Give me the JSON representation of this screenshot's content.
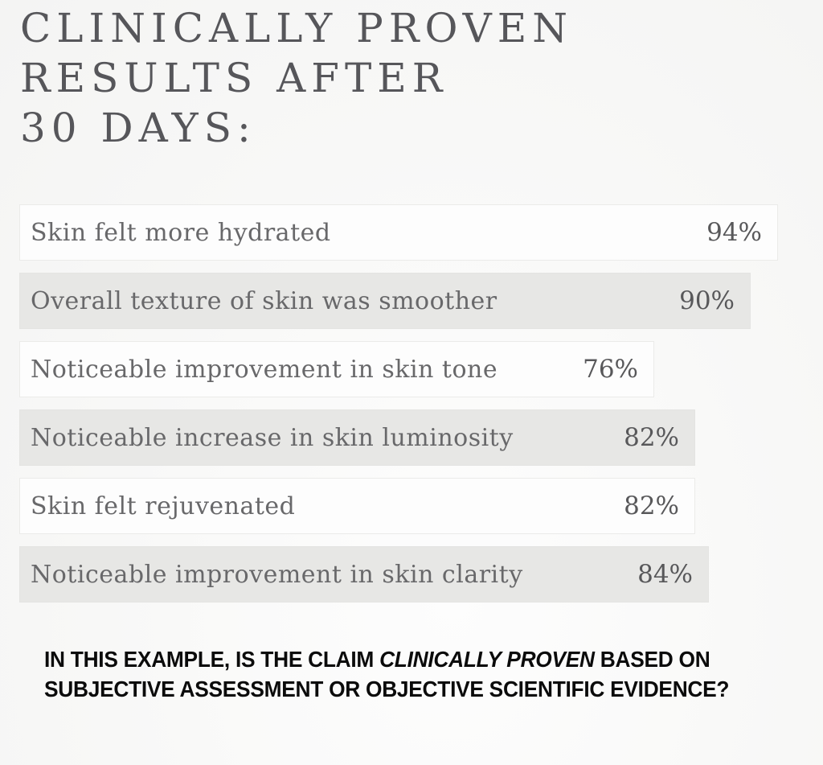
{
  "title": {
    "lines": [
      "CLINICALLY PROVEN",
      "RESULTS AFTER",
      "30 DAYS:"
    ]
  },
  "chart_data": {
    "type": "bar",
    "orientation": "horizontal",
    "title": "CLINICALLY PROVEN RESULTS AFTER 30 DAYS:",
    "categories": [
      "Skin felt more hydrated",
      "Overall texture of skin was smoother",
      "Noticeable improvement in skin tone",
      "Noticeable increase in skin luminosity",
      "Skin felt rejuvenated",
      "Noticeable improvement in skin clarity"
    ],
    "values": [
      94,
      90,
      76,
      82,
      82,
      84
    ],
    "value_suffix": "%",
    "xlim": [
      0,
      100
    ],
    "grid": false,
    "legend": false,
    "data_labels": "inside-end",
    "bar_colors": {
      "odd_row_fill": "#fdfdfd",
      "odd_row_border": "#ebebe9",
      "even_row_fill": "#e7e7e5"
    },
    "text_color": "#68686a"
  },
  "question": {
    "line1_prefix": "IN THIS EXAMPLE, IS THE CLAIM ",
    "line1_italic": "CLINICALLY PROVEN",
    "line1_suffix": " BASED ON",
    "line2": "SUBJECTIVE ASSESSMENT OR OBJECTIVE SCIENTIFIC EVIDENCE?"
  },
  "colors": {
    "background": "#f8f8f7",
    "headline_text": "#56565a",
    "question_text": "#0b0b0b"
  }
}
